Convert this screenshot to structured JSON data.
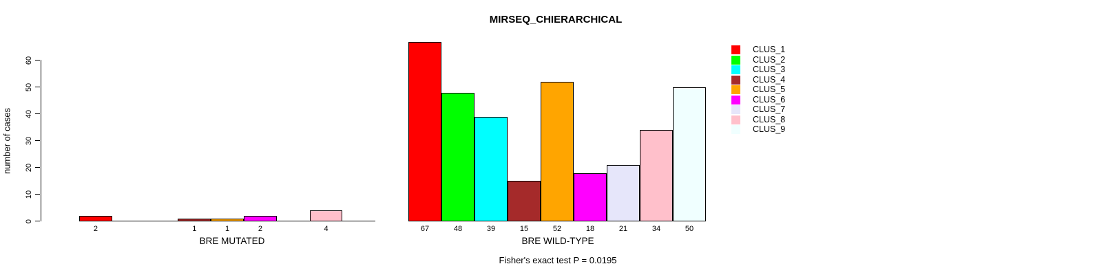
{
  "figure": {
    "title": "MIRSEQ_CHIERARCHICAL",
    "ylabel": "number of cases",
    "annotation": "Fisher's exact test P = 0.0195"
  },
  "chart_data": {
    "type": "bar",
    "title": "MIRSEQ_CHIERARCHICAL",
    "ylabel": "number of cases",
    "ylim": [
      0,
      60
    ],
    "yticks": [
      0,
      10,
      20,
      30,
      40,
      50,
      60
    ],
    "grid": false,
    "bar_border_color": "#000000",
    "clusters": [
      "CLUS_1",
      "CLUS_2",
      "CLUS_3",
      "CLUS_4",
      "CLUS_5",
      "CLUS_6",
      "CLUS_7",
      "CLUS_8",
      "CLUS_9"
    ],
    "cluster_colors": [
      "#FF0000",
      "#00FF00",
      "#00FFFF",
      "#A52A2A",
      "#FFA500",
      "#FF00FF",
      "#E6E6FA",
      "#FFC0CB",
      "#F0FFFF"
    ],
    "groups": [
      {
        "label": "BRE MUTATED",
        "values": [
          2,
          0,
          0,
          1,
          1,
          2,
          0,
          4,
          0
        ]
      },
      {
        "label": "BRE WILD-TYPE",
        "values": [
          67,
          48,
          39,
          15,
          52,
          18,
          21,
          34,
          50
        ]
      }
    ],
    "legend": {
      "position": "right",
      "entries": [
        {
          "label": "CLUS_1",
          "color": "#FF0000"
        },
        {
          "label": "CLUS_2",
          "color": "#00FF00"
        },
        {
          "label": "CLUS_3",
          "color": "#00FFFF"
        },
        {
          "label": "CLUS_4",
          "color": "#A52A2A"
        },
        {
          "label": "CLUS_5",
          "color": "#FFA500"
        },
        {
          "label": "CLUS_6",
          "color": "#FF00FF"
        },
        {
          "label": "CLUS_7",
          "color": "#E6E6FA"
        },
        {
          "label": "CLUS_8",
          "color": "#FFC0CB"
        },
        {
          "label": "CLUS_9",
          "color": "#F0FFFF"
        }
      ]
    },
    "annotation": "Fisher's exact test P = 0.0195"
  }
}
